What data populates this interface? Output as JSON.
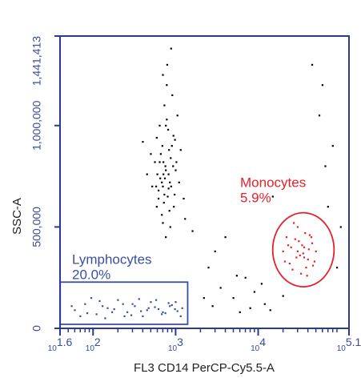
{
  "chart_data": {
    "type": "scatter",
    "x_label": "FL3 CD14 PerCP-Cy5.5-A",
    "y_label": "SSC-A",
    "xscale": "log",
    "xlim": [
      39.81,
      125893
    ],
    "xticks": [
      {
        "value": 39.81,
        "label": "10^1.6"
      },
      {
        "value": 100,
        "label": "10^2"
      },
      {
        "value": 1000,
        "label": "10^3"
      },
      {
        "value": 10000,
        "label": "10^4"
      },
      {
        "value": 125893,
        "label": "10^5.1"
      }
    ],
    "ylim": [
      0,
      1441413
    ],
    "yticks": [
      0,
      {
        "value": 500000,
        "label": "500,000"
      },
      {
        "value": 1000000,
        "label": "1,000,000"
      },
      {
        "value": 1441413,
        "label": "1,441,413"
      }
    ],
    "series": [
      {
        "color": "#000000",
        "x": [
          520,
          640,
          710,
          800,
          900,
          760,
          680,
          590,
          850,
          1000,
          1150,
          620,
          730,
          810,
          950,
          700,
          560,
          880,
          1050,
          660,
          740,
          820,
          930,
          780,
          690,
          600,
          870,
          980,
          720,
          640,
          760,
          840,
          910,
          580,
          1100,
          1250,
          500,
          450,
          790,
          860,
          700,
          620,
          940,
          1020,
          760,
          680,
          830,
          730,
          590,
          1300,
          400,
          1600,
          880,
          710,
          650,
          970,
          780,
          820,
          700,
          750
        ],
        "y": [
          700000,
          820000,
          760000,
          650000,
          900000,
          1000000,
          560000,
          940000,
          720000,
          780000,
          880000,
          640000,
          1100000,
          980000,
          600000,
          520000,
          820000,
          700000,
          1050000,
          860000,
          740000,
          690000,
          800000,
          1200000,
          900000,
          760000,
          840000,
          930000,
          620000,
          1000000,
          450000,
          580000,
          1150000,
          700000,
          720000,
          640000,
          860000,
          760000,
          1300000,
          500000,
          1250000,
          680000,
          950000,
          820000,
          780000,
          720000,
          880000,
          660000,
          600000,
          540000,
          920000,
          480000,
          1380000,
          820000,
          740000,
          660000,
          1030000,
          760000,
          700000,
          800000
        ]
      },
      {
        "color": "#3a4fa0",
        "x": [
          60,
          80,
          110,
          150,
          200,
          260,
          320,
          400,
          500,
          620,
          750,
          900,
          1050,
          1200,
          70,
          95,
          130,
          170,
          230,
          290,
          360,
          450,
          560,
          680,
          820,
          980,
          1150,
          55,
          85,
          120,
          180,
          240,
          300,
          380,
          470,
          580,
          700,
          850,
          1000,
          140
        ],
        "y": [
          90000,
          120000,
          70000,
          100000,
          140000,
          80000,
          110000,
          60000,
          130000,
          95000,
          75000,
          115000,
          85000,
          100000,
          60000,
          150000,
          110000,
          80000,
          120000,
          65000,
          145000,
          90000,
          105000,
          70000,
          125000,
          95000,
          60000,
          110000,
          75000,
          135000,
          95000,
          60000,
          120000,
          85000,
          100000,
          140000,
          80000,
          110000,
          130000,
          50000
        ]
      },
      {
        "color": "#e8202a",
        "x": [
          20000,
          24000,
          28000,
          32000,
          36000,
          40000,
          45000,
          50000,
          22000,
          26000,
          30000,
          34000,
          38000,
          42000,
          48000,
          21000,
          25000,
          29000,
          33000,
          37000,
          41000,
          46000,
          27000,
          31000,
          35000,
          39000,
          23000,
          44000,
          30000,
          36000
        ],
        "y": [
          380000,
          320000,
          440000,
          360000,
          400000,
          340000,
          420000,
          380000,
          450000,
          290000,
          500000,
          410000,
          300000,
          460000,
          330000,
          330000,
          400000,
          350000,
          270000,
          470000,
          390000,
          310000,
          520000,
          430000,
          370000,
          260000,
          410000,
          450000,
          380000,
          350000
        ]
      },
      {
        "color": "#000000",
        "x": [
          2500,
          3500,
          5000,
          7000,
          9000,
          12000,
          15000,
          60000,
          80000,
          70000,
          4000,
          6000,
          20000,
          55000,
          90000,
          3000,
          8000,
          11000,
          2200,
          65000,
          100000,
          14000,
          45000,
          5500,
          2800
        ],
        "y": [
          300000,
          200000,
          150000,
          250000,
          180000,
          120000,
          650000,
          1200000,
          900000,
          600000,
          450000,
          80000,
          160000,
          1050000,
          300000,
          380000,
          100000,
          220000,
          150000,
          800000,
          500000,
          90000,
          1300000,
          260000,
          110000
        ]
      }
    ],
    "gates": [
      {
        "label": "Lymphocytes",
        "percent": "20.0%",
        "shape": "rectangle",
        "color": "#3a4fa0",
        "x": [
          40,
          1400
        ],
        "y": [
          20000,
          228000
        ]
      },
      {
        "label": "Monocytes",
        "percent": "5.9%",
        "shape": "ellipse",
        "color": "#e8202a",
        "x": [
          15000,
          83000
        ],
        "y": [
          205000,
          570000
        ]
      }
    ]
  }
}
